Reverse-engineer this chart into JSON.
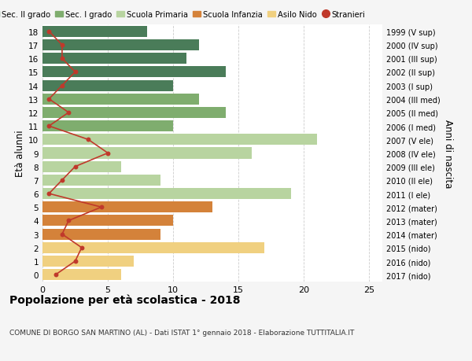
{
  "ages": [
    18,
    17,
    16,
    15,
    14,
    13,
    12,
    11,
    10,
    9,
    8,
    7,
    6,
    5,
    4,
    3,
    2,
    1,
    0
  ],
  "right_labels": [
    "1999 (V sup)",
    "2000 (IV sup)",
    "2001 (III sup)",
    "2002 (II sup)",
    "2003 (I sup)",
    "2004 (III med)",
    "2005 (II med)",
    "2006 (I med)",
    "2007 (V ele)",
    "2008 (IV ele)",
    "2009 (III ele)",
    "2010 (II ele)",
    "2011 (I ele)",
    "2012 (mater)",
    "2013 (mater)",
    "2014 (mater)",
    "2015 (nido)",
    "2016 (nido)",
    "2017 (nido)"
  ],
  "bar_values": [
    8,
    12,
    11,
    14,
    10,
    12,
    14,
    10,
    21,
    16,
    6,
    9,
    19,
    13,
    10,
    9,
    17,
    7,
    6
  ],
  "bar_colors": [
    "#4a7c59",
    "#4a7c59",
    "#4a7c59",
    "#4a7c59",
    "#4a7c59",
    "#7fad6e",
    "#7fad6e",
    "#7fad6e",
    "#b8d4a0",
    "#b8d4a0",
    "#b8d4a0",
    "#b8d4a0",
    "#b8d4a0",
    "#d4823a",
    "#d4823a",
    "#d4823a",
    "#f0d080",
    "#f0d080",
    "#f0d080"
  ],
  "stranieri_x": [
    0.5,
    1.5,
    1.5,
    2.5,
    1.5,
    0.5,
    2.0,
    0.5,
    3.5,
    5.0,
    2.5,
    1.5,
    0.5,
    4.5,
    2.0,
    1.5,
    3.0,
    2.5,
    1.0
  ],
  "legend_labels": [
    "Sec. II grado",
    "Sec. I grado",
    "Scuola Primaria",
    "Scuola Infanzia",
    "Asilo Nido",
    "Stranieri"
  ],
  "legend_colors": [
    "#4a7c59",
    "#7fad6e",
    "#b8d4a0",
    "#d4823a",
    "#f0d080",
    "#c0392b"
  ],
  "ylabel_left": "Età alunni",
  "ylabel_right": "Anni di nascita",
  "title": "Popolazione per età scolastica - 2018",
  "subtitle": "COMUNE DI BORGO SAN MARTINO (AL) - Dati ISTAT 1° gennaio 2018 - Elaborazione TUTTITALIA.IT",
  "xlim": [
    0,
    26
  ],
  "xticks": [
    0,
    5,
    10,
    15,
    20,
    25
  ],
  "bg_color": "#f5f5f5",
  "plot_bg_color": "#ffffff",
  "stranieri_color": "#c0392b",
  "grid_color": "#cccccc",
  "bar_height": 0.82
}
